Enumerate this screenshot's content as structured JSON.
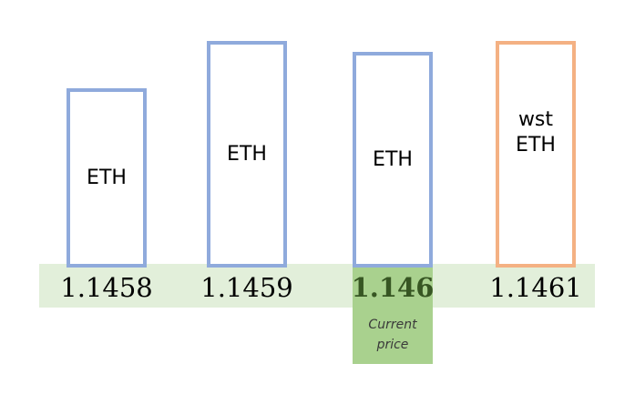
{
  "columns": [
    {
      "token": "ETH",
      "price": "1.1458",
      "color": "#8faadc",
      "current": false
    },
    {
      "token": "ETH",
      "price": "1.1459",
      "color": "#8faadc",
      "current": false
    },
    {
      "token": "ETH",
      "price": "1.146",
      "color": "#8faadc",
      "current": true
    },
    {
      "token": "wst\nETH",
      "price": "1.1461",
      "color": "#f4b183",
      "current": false
    }
  ],
  "current_price_caption": "Current\nprice",
  "colors": {
    "price_band": "#e2efda",
    "current_highlight": "#a9d18e",
    "current_text": "#375623"
  }
}
